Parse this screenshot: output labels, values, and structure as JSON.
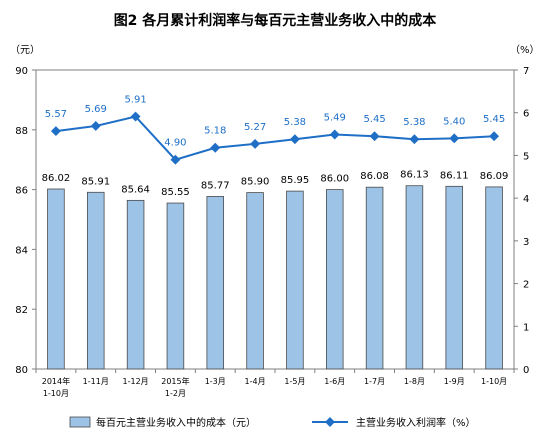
{
  "chart_data": {
    "type": "bar+line",
    "title": "图2 各月累计利润率与每百元主营业务收入中的成本",
    "left_unit": "（元）",
    "right_unit": "（%）",
    "categories": [
      [
        "2014年",
        "1-10月"
      ],
      [
        "1-11月"
      ],
      [
        "1-12月"
      ],
      [
        "2015年",
        "1-2月"
      ],
      [
        "1-3月"
      ],
      [
        "1-4月"
      ],
      [
        "1-5月"
      ],
      [
        "1-6月"
      ],
      [
        "1-7月"
      ],
      [
        "1-8月"
      ],
      [
        "1-9月"
      ],
      [
        "1-10月"
      ]
    ],
    "y_left": {
      "min": 80,
      "max": 90,
      "ticks": [
        80,
        82,
        84,
        86,
        88,
        90
      ]
    },
    "y_right": {
      "min": 0,
      "max": 7,
      "ticks": [
        0,
        1,
        2,
        3,
        4,
        5,
        6,
        7
      ]
    },
    "series": [
      {
        "name": "每百元主营业务收入中的成本（元）",
        "kind": "bar",
        "axis": "left",
        "color": "#9dc3e6",
        "values": [
          86.02,
          85.91,
          85.64,
          85.55,
          85.77,
          85.9,
          85.95,
          86.0,
          86.08,
          86.13,
          86.11,
          86.09
        ],
        "labels": [
          "86.02",
          "85.91",
          "85.64",
          "85.55",
          "85.77",
          "85.90",
          "85.95",
          "86.00",
          "86.08",
          "86.13",
          "86.11",
          "86.09"
        ]
      },
      {
        "name": "主营业务收入利润率（%）",
        "kind": "line",
        "axis": "right",
        "color": "#1f6fc7",
        "values": [
          5.57,
          5.69,
          5.91,
          4.9,
          5.18,
          5.27,
          5.38,
          5.49,
          5.45,
          5.38,
          5.4,
          5.45
        ],
        "labels": [
          "5.57",
          "5.69",
          "5.91",
          "4.90",
          "5.18",
          "5.27",
          "5.38",
          "5.49",
          "5.45",
          "5.38",
          "5.40",
          "5.45"
        ]
      }
    ],
    "legend_position": "bottom",
    "grid": false
  }
}
